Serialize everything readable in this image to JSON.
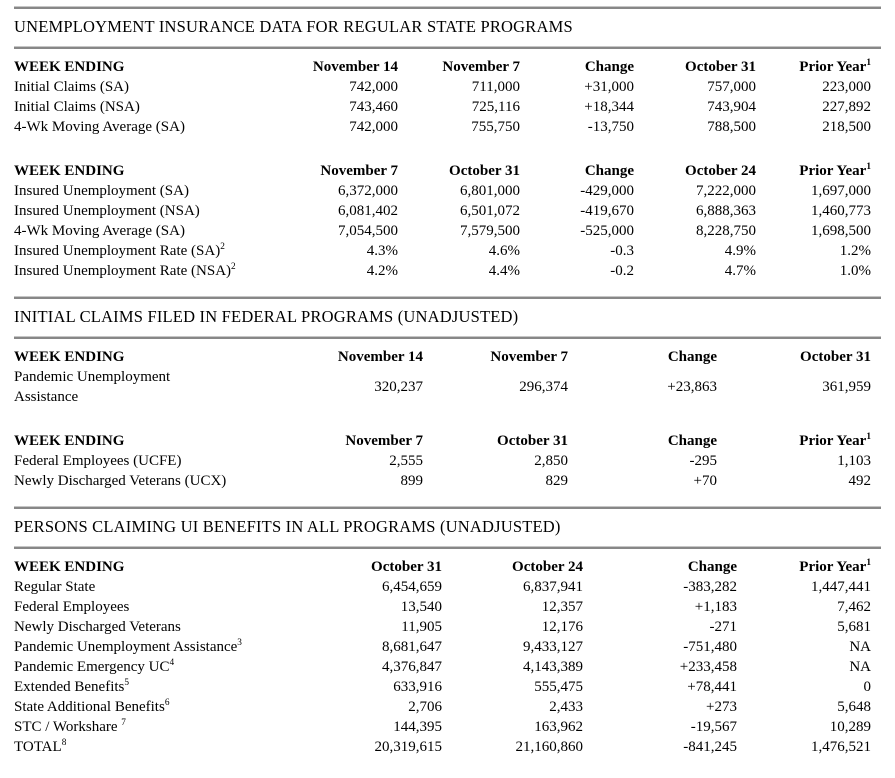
{
  "document": {
    "background_color": "#ffffff",
    "text_color": "#000000",
    "rule_color": "#878787"
  },
  "sections": [
    {
      "title": "UNEMPLOYMENT INSURANCE DATA FOR REGULAR STATE PROGRAMS",
      "tables": [
        {
          "header": {
            "label": "WEEK ENDING",
            "cols": [
              {
                "text": "November 14"
              },
              {
                "text": "November 7"
              },
              {
                "text": "Change"
              },
              {
                "text": "October 31"
              },
              {
                "text": "Prior Year",
                "sup": "1"
              }
            ]
          },
          "rows": [
            {
              "label": "Initial Claims (SA)",
              "values": [
                "742,000",
                "711,000",
                "+31,000",
                "757,000",
                "223,000"
              ]
            },
            {
              "label": "Initial Claims (NSA)",
              "values": [
                "743,460",
                "725,116",
                "+18,344",
                "743,904",
                "227,892"
              ]
            },
            {
              "label": "4-Wk Moving Average (SA)",
              "values": [
                "742,000",
                "755,750",
                "-13,750",
                "788,500",
                "218,500"
              ]
            }
          ]
        },
        {
          "header": {
            "label": "WEEK ENDING",
            "cols": [
              {
                "text": "November 7"
              },
              {
                "text": "October 31"
              },
              {
                "text": "Change"
              },
              {
                "text": "October 24"
              },
              {
                "text": "Prior Year",
                "sup": "1"
              }
            ]
          },
          "rows": [
            {
              "label": "Insured Unemployment (SA)",
              "values": [
                "6,372,000",
                "6,801,000",
                "-429,000",
                "7,222,000",
                "1,697,000"
              ]
            },
            {
              "label": "Insured Unemployment (NSA)",
              "values": [
                "6,081,402",
                "6,501,072",
                "-419,670",
                "6,888,363",
                "1,460,773"
              ]
            },
            {
              "label": "4-Wk Moving Average (SA)",
              "values": [
                "7,054,500",
                "7,579,500",
                "-525,000",
                "8,228,750",
                "1,698,500"
              ]
            },
            {
              "label": "Insured Unemployment Rate (SA)",
              "sup": "2",
              "values": [
                "4.3%",
                "4.6%",
                "-0.3",
                "4.9%",
                "1.2%"
              ]
            },
            {
              "label": "Insured Unemployment Rate (NSA)",
              "sup": "2",
              "values": [
                "4.2%",
                "4.4%",
                "-0.2",
                "4.7%",
                "1.0%"
              ]
            }
          ]
        }
      ]
    },
    {
      "title": "INITIAL CLAIMS FILED IN FEDERAL PROGRAMS (UNADJUSTED)",
      "tables": [
        {
          "header": {
            "label": "WEEK ENDING",
            "cols": [
              {
                "text": "November 14"
              },
              {
                "text": "November 7"
              },
              {
                "text": "Change"
              },
              {
                "text": "October 31"
              }
            ]
          },
          "rows": [
            {
              "label": "Pandemic Unemployment\nAssistance",
              "values": [
                "320,237",
                "296,374",
                "+23,863",
                "361,959"
              ]
            }
          ]
        },
        {
          "header": {
            "label": "WEEK ENDING",
            "cols": [
              {
                "text": "November 7"
              },
              {
                "text": "October 31"
              },
              {
                "text": "Change"
              },
              {
                "text": "Prior Year",
                "sup": "1"
              }
            ]
          },
          "rows": [
            {
              "label": "Federal Employees (UCFE)",
              "values": [
                "2,555",
                "2,850",
                "-295",
                "1,103"
              ]
            },
            {
              "label": "Newly Discharged Veterans (UCX)",
              "values": [
                "899",
                "829",
                "+70",
                "492"
              ]
            }
          ]
        }
      ]
    },
    {
      "title": "PERSONS CLAIMING UI BENEFITS IN ALL PROGRAMS (UNADJUSTED)",
      "tables": [
        {
          "header": {
            "label": "WEEK ENDING",
            "cols": [
              {
                "text": "October 31"
              },
              {
                "text": "October 24"
              },
              {
                "text": "Change"
              },
              {
                "text": "Prior Year",
                "sup": "1"
              }
            ]
          },
          "rows": [
            {
              "label": "Regular State",
              "values": [
                "6,454,659",
                "6,837,941",
                "-383,282",
                "1,447,441"
              ]
            },
            {
              "label": "Federal Employees",
              "values": [
                "13,540",
                "12,357",
                "+1,183",
                "7,462"
              ]
            },
            {
              "label": "Newly Discharged Veterans",
              "values": [
                "11,905",
                "12,176",
                "-271",
                "5,681"
              ]
            },
            {
              "label": "Pandemic Unemployment Assistance",
              "sup": "3",
              "values": [
                "8,681,647",
                "9,433,127",
                "-751,480",
                "NA"
              ]
            },
            {
              "label": "Pandemic Emergency UC",
              "sup": "4",
              "values": [
                "4,376,847",
                "4,143,389",
                "+233,458",
                "NA"
              ]
            },
            {
              "label": "Extended Benefits",
              "sup": "5",
              "values": [
                "633,916",
                "555,475",
                "+78,441",
                "0"
              ]
            },
            {
              "label": "State Additional Benefits",
              "sup": "6",
              "values": [
                "2,706",
                "2,433",
                "+273",
                "5,648"
              ]
            },
            {
              "label": "STC / Workshare ",
              "sup": "7",
              "values": [
                "144,395",
                "163,962",
                "-19,567",
                "10,289"
              ]
            },
            {
              "label": "TOTAL",
              "sup": "8",
              "values": [
                "20,319,615",
                "21,160,860",
                "-841,245",
                "1,476,521"
              ]
            }
          ]
        }
      ]
    }
  ]
}
